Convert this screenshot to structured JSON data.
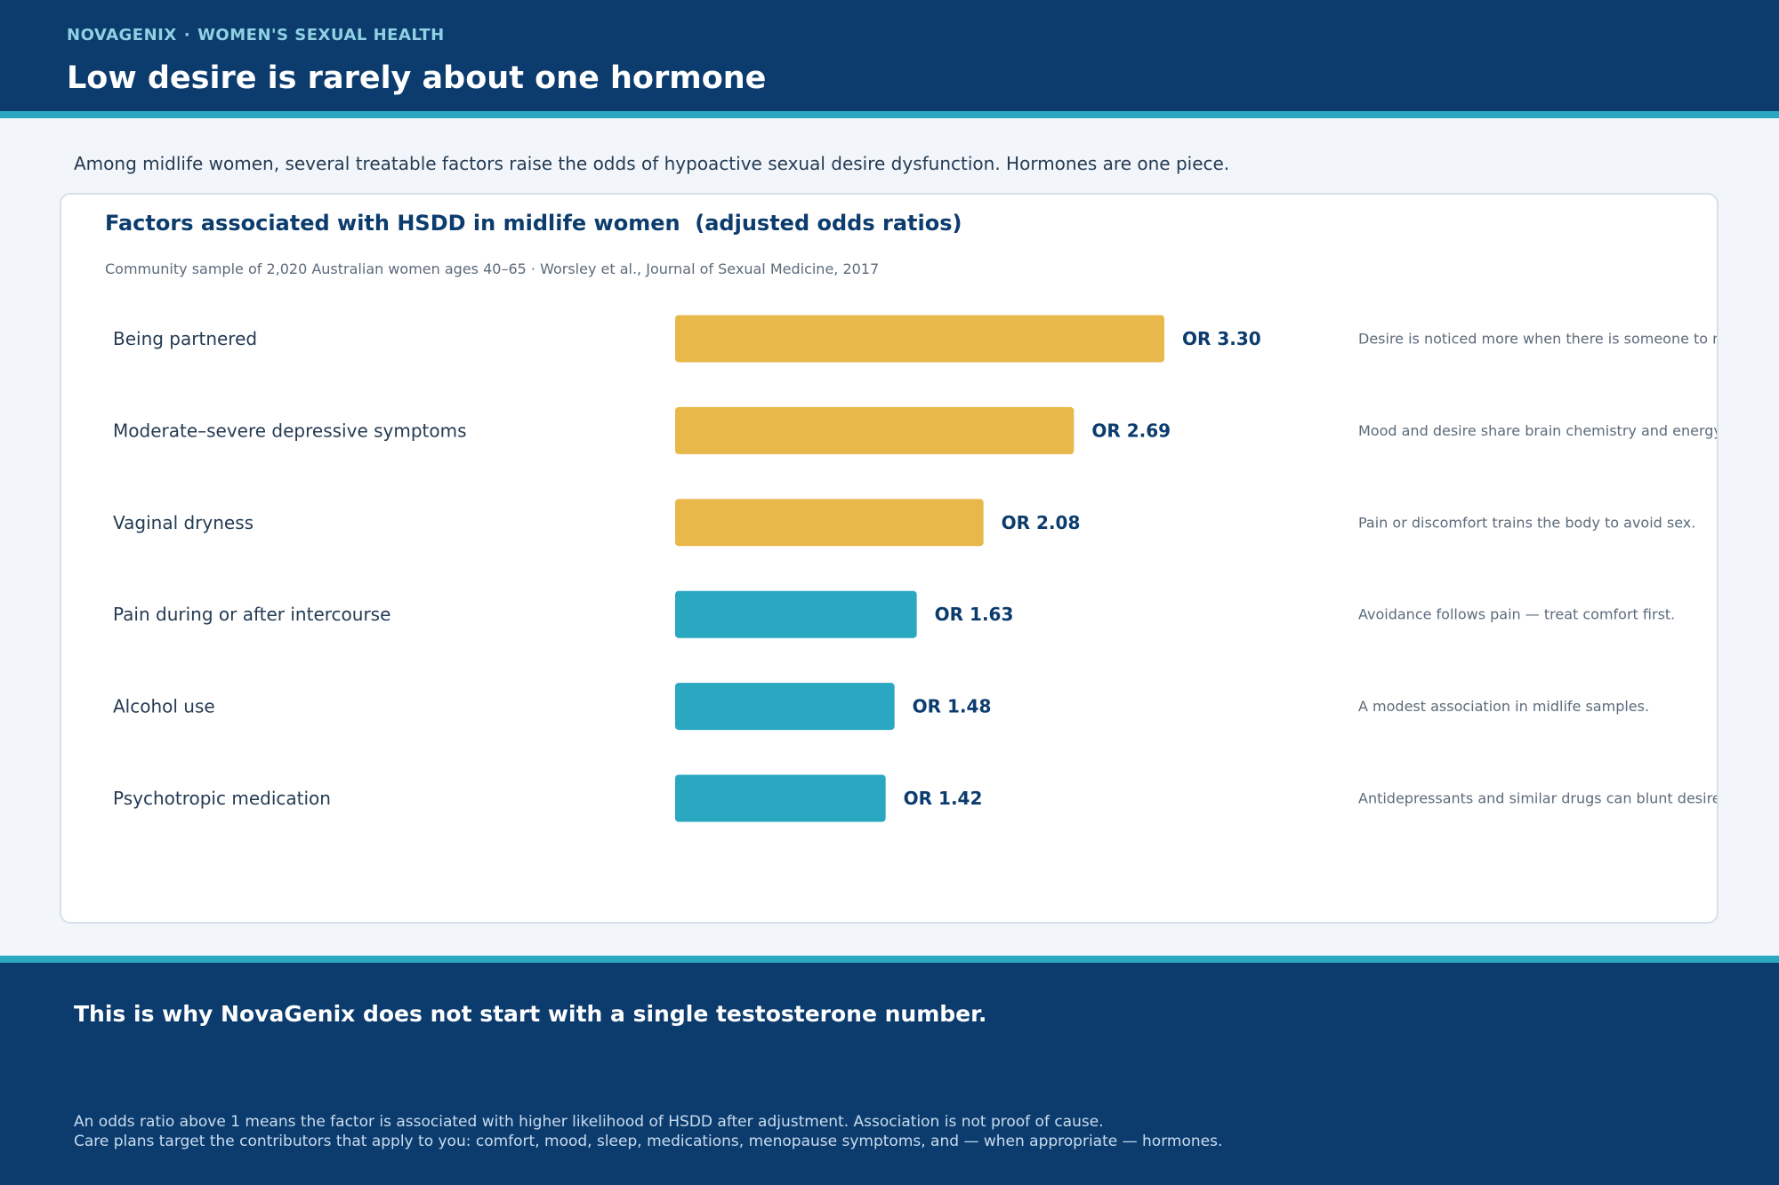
{
  "header": {
    "brand": "NOVAGENIX",
    "separator": "·",
    "section": "WOMEN'S SEXUAL HEALTH",
    "headline": "Low desire is rarely about one hormone"
  },
  "intro": "Among midlife women, several treatable factors raise the odds of hypoactive sexual desire dysfunction. Hormones are one piece.",
  "card": {
    "title": "Factors associated with HSDD in midlife women  (adjusted odds ratios)",
    "subtitle": "Community sample of 2,020 Australian women ages 40–65  ·  Worsley et al., Journal of Sexual Medicine, 2017"
  },
  "chart_data": {
    "type": "bar",
    "orientation": "horizontal",
    "value_prefix": "OR ",
    "xlim": [
      0,
      4.0
    ],
    "categories": [
      "Being partnered",
      "Moderate–severe depressive symptoms",
      "Vaginal dryness",
      "Pain during or after intercourse",
      "Alcohol use",
      "Psychotropic medication"
    ],
    "values": [
      3.3,
      2.69,
      2.08,
      1.63,
      1.48,
      1.42
    ],
    "value_labels": [
      "3.30",
      "2.69",
      "2.08",
      "1.63",
      "1.48",
      "1.42"
    ],
    "bar_colors": [
      "#e8b84a",
      "#e8b84a",
      "#e8b84a",
      "#2aa8c1",
      "#2aa8c1",
      "#2aa8c1"
    ],
    "annotations": [
      "Desire is noticed more when there is someone to miss it with.",
      "Mood and desire share brain chemistry and energy.",
      "Pain or discomfort trains the body to avoid sex.",
      "Avoidance follows pain — treat comfort first.",
      "A modest association in midlife samples.",
      "Antidepressants and similar drugs can blunt desire."
    ]
  },
  "footer": {
    "headline": "This is why NovaGenix does not start with a single testosterone number.",
    "note_line1": "An odds ratio above 1 means the factor is associated with higher likelihood of HSDD after adjustment. Association is not proof of cause.",
    "note_line2": "Care plans target the contributors that apply to you: comfort, mood, sleep, medications, menopause symptoms, and — when appropriate — hormones."
  },
  "colors": {
    "navy": "#0c3c6e",
    "teal": "#2aa8c1",
    "gold": "#e8b84a",
    "page_bg": "#f2f6fb"
  }
}
